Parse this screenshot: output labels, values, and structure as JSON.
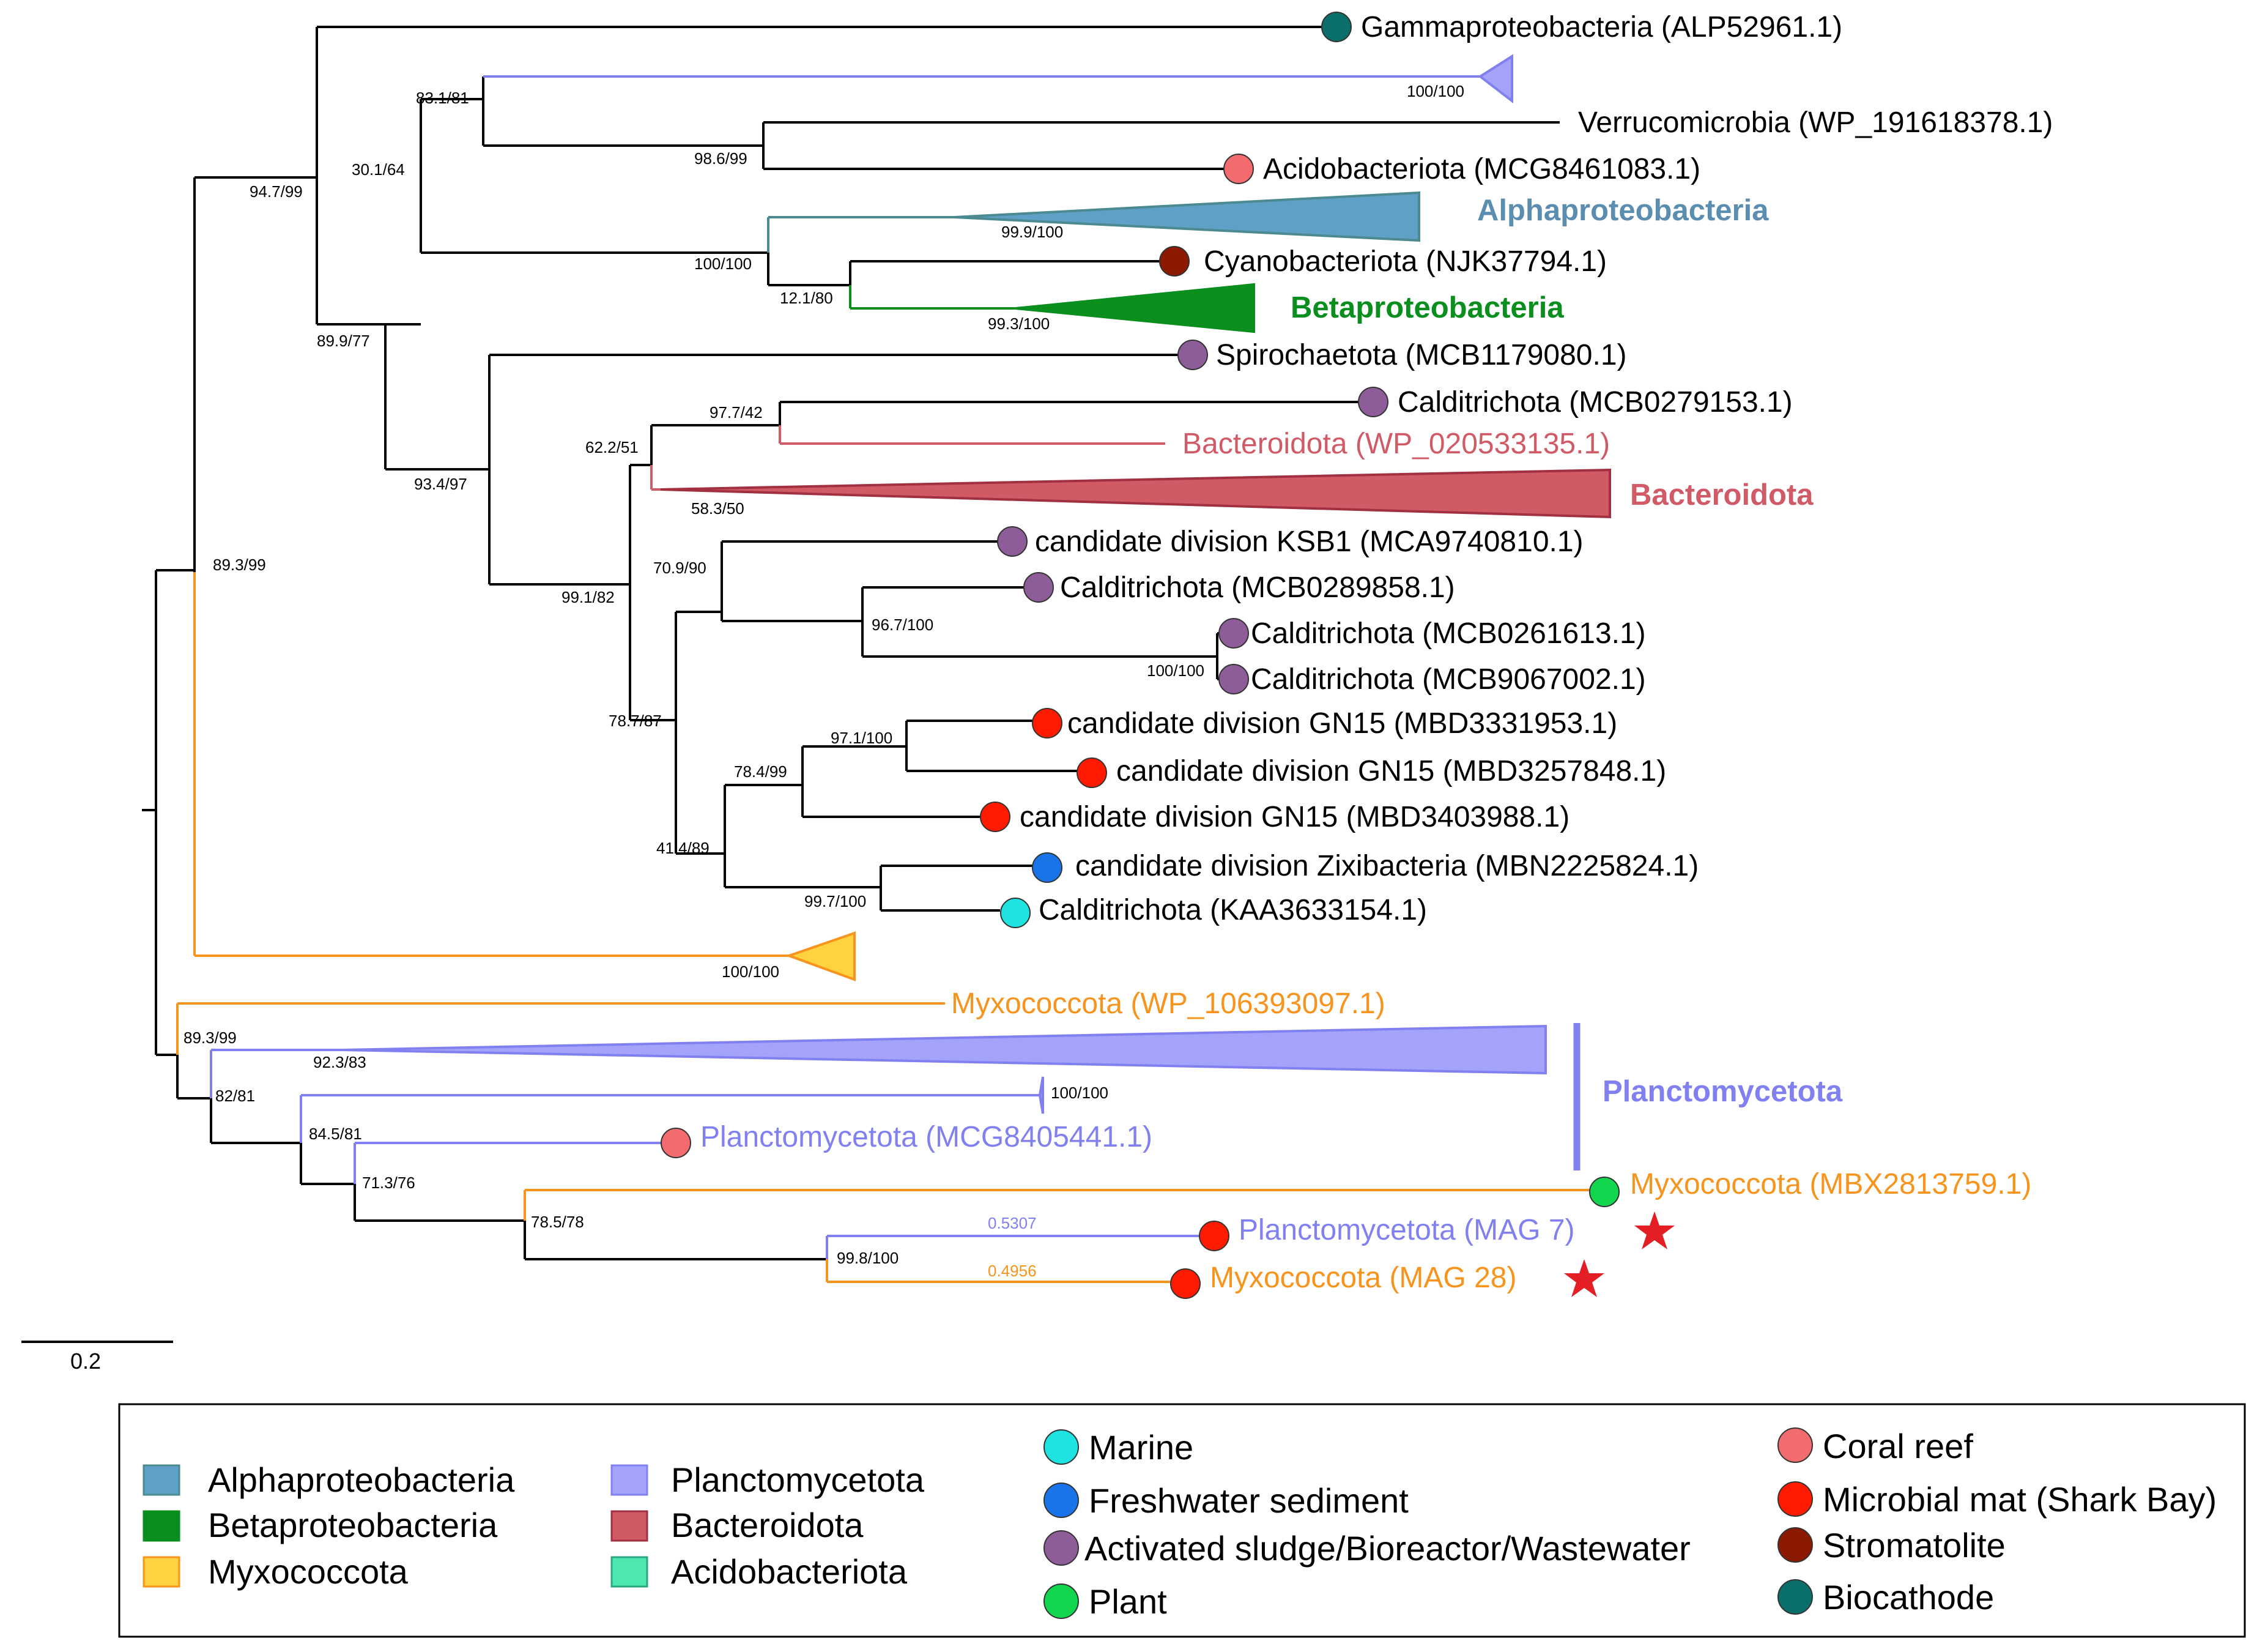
{
  "colors": {
    "black": "#000000",
    "orange": "#F7941D",
    "planct": "#8080F0",
    "planct_fill": "#A3A3FA",
    "alpha": "#5FA0C6",
    "alpha_line": "#4A8A90",
    "beta": "#0A8F1E",
    "bacter": "#D15A67",
    "myxo_fill": "#FFD23F",
    "acido_fill": "#4CE8B0",
    "env_marine": "#1FE3E0",
    "env_fresh": "#1874E8",
    "env_sludge": "#8F5C9A",
    "env_plant": "#12D64E",
    "env_coral": "#F26B6F",
    "env_mat": "#FF1A00",
    "env_strom": "#8B1A00",
    "env_bio": "#0A6E6B",
    "star": "#E31E24"
  },
  "taxa": {
    "gamma": "Gammaproteobacteria (ALP52961.1)",
    "verruco": "Verrucomicrobia (WP_191618378.1)",
    "acido": "Acidobacteriota (MCG8461083.1)",
    "cyano": "Cyanobacteriota (NJK37794.1)",
    "spiro": "Spirochaetota (MCB1179080.1)",
    "caldi1": "Calditrichota (MCB0279153.1)",
    "bacter": "Bacteroidota (WP_020533135.1)",
    "ksb1": "candidate division KSB1 (MCA9740810.1)",
    "caldi2": "Calditrichota (MCB0289858.1)",
    "caldi3": "Calditrichota (MCB0261613.1)",
    "caldi4": "Calditrichota (MCB9067002.1)",
    "gn15a": "candidate division GN15 (MBD3331953.1)",
    "gn15b": "candidate division GN15 (MBD3257848.1)",
    "gn15c": "candidate division GN15 (MBD3403988.1)",
    "zixi": "candidate division Zixibacteria (MBN2225824.1)",
    "caldi5": "Calditrichota (KAA3633154.1)",
    "myxo1": "Myxococcota (WP_106393097.1)",
    "planct1": "Planctomycetota (MCG8405441.1)",
    "myxo2": "Myxococcota (MBX2813759.1)",
    "mag7": "Planctomycetota (MAG 7)",
    "mag28": "Myxococcota (MAG 28)"
  },
  "clades": {
    "alpha": "Alphaproteobacteria",
    "beta": "Betaproteobacteria",
    "bacter": "Bacteroidota",
    "planct": "Planctomycetota"
  },
  "support": {
    "s1": "83.1/81",
    "s2": "100/100",
    "s3": "94.7/99",
    "s4": "30.1/64",
    "s5": "98.6/99",
    "s6": "99.9/100",
    "s7": "100/100",
    "s8": "12.1/80",
    "s9": "99.3/100",
    "s10": "89.9/77",
    "s11": "97.7/42",
    "s12": "62.2/51",
    "s13": "58.3/50",
    "s14": "93.4/97",
    "s15": "70.9/90",
    "s16": "99.1/82",
    "s17": "96.7/100",
    "s18": "100/100",
    "s19": "89.3/99",
    "s20": "78.7/87",
    "s21": "97.1/100",
    "s22": "78.4/99",
    "s23": "41.4/89",
    "s24": "99.7/100",
    "s25": "100/100",
    "s26": "89.3/99",
    "s27": "92.3/83",
    "s28": "100/100",
    "s29": "82/81",
    "s30": "84.5/81",
    "s31": "71.3/76",
    "s32": "78.5/78",
    "s33": "99.8/100"
  },
  "branch_lengths": {
    "mag7": "0.5307",
    "mag28": "0.4956"
  },
  "scale_bar": "0.2",
  "legend": {
    "groups": [
      "Alphaproteobacteria",
      "Betaproteobacteria",
      "Myxococcota",
      "Planctomycetota",
      "Bacteroidota",
      "Acidobacteriota"
    ],
    "envs": [
      "Marine",
      "Freshwater sediment",
      "Activated sludge/Bioreactor/Wastewater",
      "Plant",
      "Coral reef",
      "Microbial mat (Shark Bay)",
      "Stromatolite",
      "Biocathode"
    ]
  }
}
